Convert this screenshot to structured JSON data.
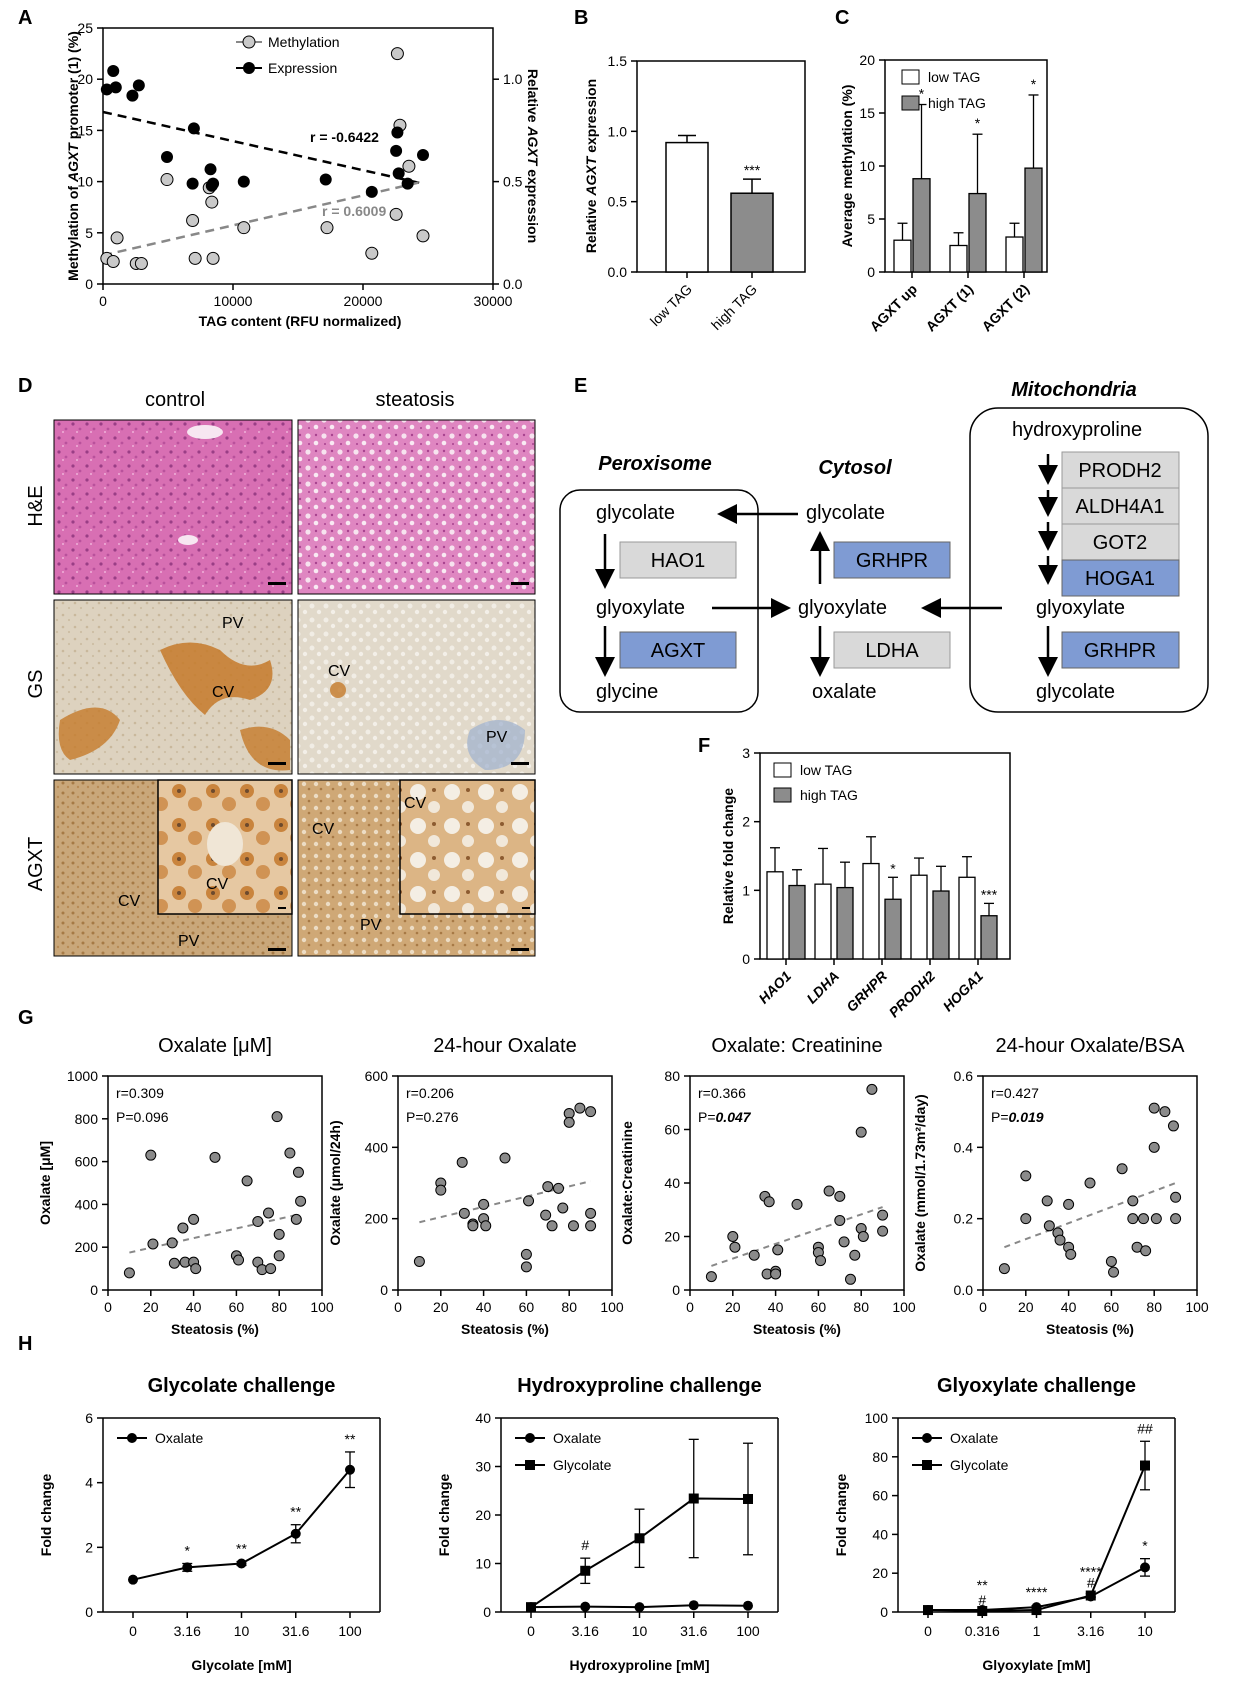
{
  "panels": {
    "A": {
      "label": "A",
      "legend": [
        "Methylation",
        "Expression"
      ],
      "xlabel": "TAG content (RFU normalized)",
      "ylabel_left_parts": [
        "Methylation of ",
        "AGXT",
        " promoter (1) (%)"
      ],
      "ylabel_right_parts": [
        "Relative ",
        "AGXT",
        " expression"
      ],
      "r_expression": "r = -0.6422",
      "r_methylation": "r = 0.6009",
      "xticks": [
        "0",
        "10000",
        "20000",
        "30000"
      ],
      "yticks_left": [
        "0",
        "5",
        "10",
        "15",
        "20",
        "25"
      ],
      "yticks_right": [
        "0.0",
        "0.5",
        "1.0"
      ]
    },
    "B": {
      "label": "B",
      "ylabel_parts": [
        "Relative ",
        "AGXT",
        " expression"
      ],
      "categories": [
        "low TAG",
        "high TAG"
      ],
      "yticks": [
        "0.0",
        "0.5",
        "1.0",
        "1.5"
      ],
      "sig": "***"
    },
    "C": {
      "label": "C",
      "legend": [
        "low TAG",
        "high TAG"
      ],
      "ylabel": "Average methylation (%)",
      "categories": [
        "AGXT up",
        "AGXT (1)",
        "AGXT (2)"
      ],
      "yticks": [
        "0",
        "5",
        "10",
        "15",
        "20"
      ],
      "sig": [
        "*",
        "*",
        "*"
      ]
    },
    "D": {
      "label": "D",
      "columns": [
        "control",
        "steatosis"
      ],
      "rows": [
        "H&E",
        "GS",
        "AGXT"
      ],
      "tags": {
        "gs_control": [
          "PV",
          "CV"
        ],
        "gs_steatosis": [
          "CV",
          "PV"
        ],
        "agxt_control": [
          "CV",
          "CV",
          "PV"
        ],
        "agxt_steatosis": [
          "CV",
          "CV",
          "PV"
        ]
      }
    },
    "E": {
      "label": "E",
      "compartments": {
        "mito": "Mitochondria",
        "perox": "Peroxisome",
        "cyto": "Cytosol"
      },
      "metabolites": {
        "hydroxyproline": "hydroxyproline",
        "glycolate": "glycolate",
        "glyoxylate": "glyoxylate",
        "glycine": "glycine",
        "oxalate": "oxalate"
      },
      "enzymes": {
        "HAO1": "HAO1",
        "AGXT": "AGXT",
        "GRHPR": "GRHPR",
        "LDHA": "LDHA",
        "PRODH2": "PRODH2",
        "ALDH4A1": "ALDH4A1",
        "GOT2": "GOT2",
        "HOGA1": "HOGA1"
      }
    },
    "F": {
      "label": "F",
      "legend": [
        "low TAG",
        "high TAG"
      ],
      "ylabel": "Relative fold change",
      "categories": [
        "HAO1",
        "LDHA",
        "GRHPR",
        "PRODH2",
        "HOGA1"
      ],
      "yticks": [
        "0",
        "1",
        "2",
        "3"
      ],
      "sig": [
        "",
        "",
        "*",
        "",
        "***"
      ]
    },
    "G": {
      "label": "G",
      "xlabel": "Steatosis (%)",
      "xticks": [
        "0",
        "20",
        "40",
        "60",
        "80",
        "100"
      ],
      "plots": [
        {
          "title": "Oxalate [μM]",
          "ylabel": "Oxalate [μM]",
          "r": "r=0.309",
          "p_prefix": "P=",
          "p_val": "0.096",
          "p_bold": false,
          "yticks": [
            "0",
            "200",
            "400",
            "600",
            "800",
            "1000"
          ]
        },
        {
          "title": "24-hour Oxalate",
          "ylabel": "Oxalate (μmol/24h)",
          "r": "r=0.206",
          "p_prefix": "P=",
          "p_val": "0.276",
          "p_bold": false,
          "yticks": [
            "0",
            "200",
            "400",
            "600"
          ]
        },
        {
          "title": "Oxalate: Creatinine",
          "ylabel": "Oxalate:Creatinine",
          "r": "r=0.366",
          "p_prefix": "P=",
          "p_val": "0.047",
          "p_bold": true,
          "yticks": [
            "0",
            "20",
            "40",
            "60",
            "80"
          ]
        },
        {
          "title": "24-hour Oxalate/BSA",
          "ylabel": "Oxalate (mmol/1.73m²/day)",
          "r": "r=0.427",
          "p_prefix": "P=",
          "p_val": "0.019",
          "p_bold": true,
          "yticks": [
            "0.0",
            "0.2",
            "0.4",
            "0.6"
          ]
        }
      ]
    },
    "H": {
      "label": "H",
      "ylabel": "Fold change",
      "plots": [
        {
          "title": "Glycolate challenge",
          "xlabel": "Glycolate [mM]",
          "xticks": [
            "0",
            "3.16",
            "10",
            "31.6",
            "100"
          ],
          "yticks": [
            "0",
            "2",
            "4",
            "6"
          ],
          "legend": [
            "Oxalate"
          ]
        },
        {
          "title": "Hydroxyproline  challenge",
          "xlabel": "Hydroxyproline [mM]",
          "xticks": [
            "0",
            "3.16",
            "10",
            "31.6",
            "100"
          ],
          "yticks": [
            "0",
            "10",
            "20",
            "30",
            "40"
          ],
          "legend": [
            "Oxalate",
            "Glycolate"
          ]
        },
        {
          "title": "Glyoxylate challenge",
          "xlabel": "Glyoxylate [mM]",
          "xticks": [
            "0",
            "0.316",
            "1",
            "3.16",
            "10"
          ],
          "yticks": [
            "0",
            "20",
            "40",
            "60",
            "80",
            "100"
          ],
          "legend": [
            "Oxalate",
            "Glycolate"
          ]
        }
      ]
    }
  },
  "chart_data": [
    {
      "id": "A",
      "type": "scatter",
      "xlim": [
        0,
        30000
      ],
      "ylim_left": [
        0,
        25
      ],
      "ylim_right": [
        0,
        1.25
      ],
      "series": [
        {
          "name": "Methylation",
          "axis": "left",
          "x": [
            300,
            800,
            1100,
            2600,
            3000,
            5000,
            7000,
            7200,
            8300,
            8500,
            8600,
            11000,
            17500,
            21000,
            22900,
            23000,
            23200,
            23900,
            25000
          ],
          "y": [
            2.5,
            2.2,
            4.5,
            2.0,
            2.0,
            10.2,
            6.2,
            2.5,
            9.4,
            8.0,
            2.5,
            5.5,
            5.5,
            3.0,
            6.8,
            22.5,
            15.5,
            11.5,
            4.7
          ]
        },
        {
          "name": "Expression",
          "axis": "right",
          "x": [
            300,
            800,
            1000,
            2300,
            2800,
            5000,
            7000,
            7100,
            8400,
            8500,
            8600,
            11000,
            17400,
            21000,
            22900,
            23000,
            23100,
            23800,
            25000
          ],
          "y": [
            0.95,
            1.04,
            0.96,
            0.92,
            0.97,
            0.62,
            0.49,
            0.76,
            0.56,
            0.48,
            0.49,
            0.5,
            0.51,
            0.45,
            0.65,
            0.74,
            0.54,
            0.49,
            0.63
          ]
        }
      ],
      "fits": [
        {
          "name": "Expression",
          "axis": "right",
          "x": [
            0,
            25000
          ],
          "y": [
            0.84,
            0.49
          ]
        },
        {
          "name": "Methylation",
          "axis": "left",
          "x": [
            0,
            25000
          ],
          "y": [
            2.8,
            10.0
          ]
        }
      ]
    },
    {
      "id": "B",
      "type": "bar",
      "ylim": [
        0,
        1.5
      ],
      "categories": [
        "low TAG",
        "high TAG"
      ],
      "values": [
        0.92,
        0.56
      ],
      "errors": [
        0.05,
        0.1
      ]
    },
    {
      "id": "C",
      "type": "bar",
      "ylim": [
        0,
        20
      ],
      "categories": [
        "AGXT up",
        "AGXT (1)",
        "AGXT (2)"
      ],
      "series": [
        {
          "name": "low TAG",
          "values": [
            3.0,
            2.5,
            3.3
          ],
          "errors": [
            1.6,
            1.2,
            1.3
          ]
        },
        {
          "name": "high TAG",
          "values": [
            8.8,
            7.4,
            9.8
          ],
          "errors": [
            7.0,
            5.6,
            6.9
          ]
        }
      ]
    },
    {
      "id": "F",
      "type": "bar",
      "ylim": [
        0,
        3
      ],
      "categories": [
        "HAO1",
        "LDHA",
        "GRHPR",
        "PRODH2",
        "HOGA1"
      ],
      "series": [
        {
          "name": "low TAG",
          "values": [
            1.27,
            1.09,
            1.39,
            1.22,
            1.19
          ],
          "errors": [
            0.35,
            0.52,
            0.39,
            0.25,
            0.3
          ]
        },
        {
          "name": "high TAG",
          "values": [
            1.07,
            1.04,
            0.87,
            0.99,
            0.63
          ],
          "errors": [
            0.23,
            0.37,
            0.32,
            0.36,
            0.18
          ]
        }
      ]
    },
    {
      "id": "G1",
      "type": "scatter",
      "xlim": [
        0,
        100
      ],
      "ylim": [
        0,
        1000
      ],
      "x": [
        10,
        20,
        21,
        30,
        31,
        35,
        36,
        40,
        40,
        41,
        50,
        60,
        61,
        65,
        70,
        70,
        72,
        75,
        76,
        79,
        80,
        80,
        85,
        88,
        89,
        90
      ],
      "y": [
        80,
        630,
        215,
        220,
        125,
        290,
        130,
        330,
        130,
        100,
        620,
        160,
        140,
        510,
        320,
        130,
        95,
        360,
        100,
        810,
        260,
        160,
        640,
        330,
        550,
        415
      ],
      "fit": {
        "x": [
          10,
          90
        ],
        "y": [
          175,
          355
        ]
      }
    },
    {
      "id": "G2",
      "type": "scatter",
      "xlim": [
        0,
        100
      ],
      "ylim": [
        0,
        600
      ],
      "x": [
        10,
        20,
        20,
        30,
        31,
        35,
        35,
        40,
        40,
        41,
        50,
        60,
        60,
        61,
        69,
        70,
        72,
        75,
        77,
        80,
        80,
        82,
        85,
        90,
        90,
        90
      ],
      "y": [
        80,
        300,
        280,
        358,
        215,
        185,
        180,
        240,
        200,
        180,
        370,
        100,
        65,
        250,
        210,
        290,
        180,
        285,
        230,
        495,
        470,
        180,
        510,
        500,
        215,
        180
      ],
      "fit": {
        "x": [
          10,
          90
        ],
        "y": [
          190,
          305
        ]
      }
    },
    {
      "id": "G3",
      "type": "scatter",
      "xlim": [
        0,
        100
      ],
      "ylim": [
        0,
        80
      ],
      "x": [
        10,
        20,
        21,
        30,
        35,
        36,
        37,
        40,
        40,
        41,
        50,
        60,
        60,
        61,
        65,
        70,
        70,
        72,
        75,
        77,
        80,
        80,
        81,
        85,
        90,
        90
      ],
      "y": [
        5,
        20,
        16,
        13,
        35,
        6,
        33,
        7,
        6,
        15,
        32,
        16,
        14,
        11,
        37,
        35,
        26,
        18,
        4,
        13,
        59,
        23,
        20,
        75,
        28,
        22
      ],
      "fit": {
        "x": [
          10,
          90
        ],
        "y": [
          9,
          31
        ]
      }
    },
    {
      "id": "G4",
      "type": "scatter",
      "xlim": [
        0,
        100
      ],
      "ylim": [
        0,
        0.6
      ],
      "x": [
        10,
        20,
        20,
        30,
        31,
        35,
        36,
        40,
        40,
        41,
        50,
        60,
        61,
        65,
        70,
        70,
        72,
        75,
        76,
        80,
        80,
        81,
        85,
        89,
        90,
        90
      ],
      "y": [
        0.06,
        0.32,
        0.2,
        0.25,
        0.18,
        0.16,
        0.14,
        0.24,
        0.12,
        0.1,
        0.3,
        0.08,
        0.05,
        0.34,
        0.2,
        0.25,
        0.12,
        0.2,
        0.11,
        0.51,
        0.4,
        0.2,
        0.5,
        0.46,
        0.26,
        0.2
      ],
      "fit": {
        "x": [
          10,
          90
        ],
        "y": [
          0.12,
          0.3
        ]
      }
    },
    {
      "id": "H1",
      "type": "line",
      "xcat": [
        "0",
        "3.16",
        "10",
        "31.6",
        "100"
      ],
      "ylim": [
        0,
        6
      ],
      "series": [
        {
          "name": "Oxalate",
          "marker": "circle",
          "values": [
            1.0,
            1.38,
            1.5,
            2.42,
            4.4
          ],
          "errors": [
            0,
            0.12,
            0.06,
            0.28,
            0.55
          ],
          "annotations": [
            "",
            "*",
            "**",
            "**",
            "**"
          ]
        }
      ]
    },
    {
      "id": "H2",
      "type": "line",
      "xcat": [
        "0",
        "3.16",
        "10",
        "31.6",
        "100"
      ],
      "ylim": [
        0,
        40
      ],
      "series": [
        {
          "name": "Oxalate",
          "marker": "circle",
          "values": [
            1.0,
            1.1,
            1.0,
            1.4,
            1.3
          ],
          "errors": [
            0,
            0,
            0,
            0,
            0
          ],
          "annotations": [
            "",
            "",
            "",
            "",
            ""
          ]
        },
        {
          "name": "Glycolate",
          "marker": "square",
          "values": [
            1.0,
            8.5,
            15.2,
            23.4,
            23.3
          ],
          "errors": [
            0,
            2.6,
            6.0,
            12.2,
            11.5
          ],
          "annotations": [
            "",
            "#",
            "",
            "",
            ""
          ]
        }
      ]
    },
    {
      "id": "H3",
      "type": "line",
      "xcat": [
        "0",
        "0.316",
        "1",
        "3.16",
        "10"
      ],
      "ylim": [
        0,
        100
      ],
      "series": [
        {
          "name": "Oxalate",
          "marker": "circle",
          "values": [
            1.0,
            1.0,
            2.5,
            8.0,
            23.0
          ],
          "errors": [
            0,
            0,
            0,
            0,
            4.5
          ],
          "annotations": [
            "",
            "**",
            "****",
            "****",
            "*"
          ]
        },
        {
          "name": "Glycolate",
          "marker": "square",
          "values": [
            1.0,
            0.5,
            1.0,
            8.5,
            75.5
          ],
          "errors": [
            0,
            0,
            0,
            1.0,
            12.5
          ],
          "annotations": [
            "",
            "#",
            "",
            "#",
            "##"
          ]
        }
      ]
    }
  ]
}
